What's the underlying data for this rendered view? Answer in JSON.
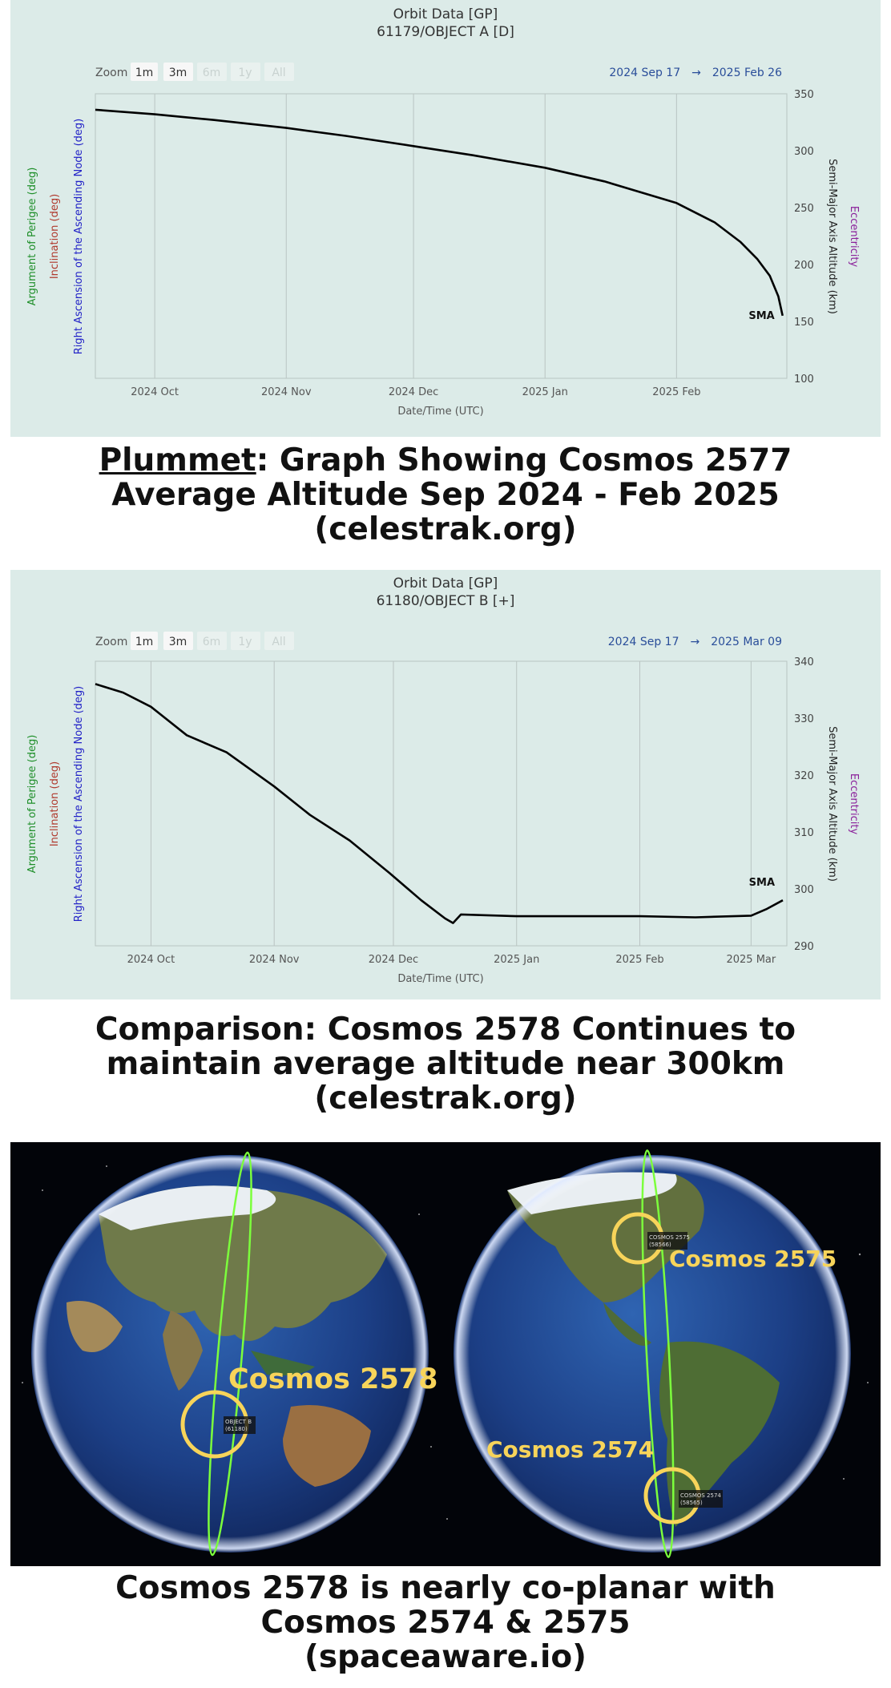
{
  "charts": {
    "a": {
      "title": "Orbit Data [GP]",
      "subtitle": "61179/OBJECT A [D]",
      "zoom": {
        "label": "Zoom",
        "buttons": [
          "1m",
          "3m",
          "6m",
          "1y",
          "All"
        ]
      },
      "range": {
        "start": "2024 Sep 17",
        "arrow": "→",
        "end": "2025 Feb 26"
      },
      "left_axis_labels": [
        "Argument of Perigee (deg)",
        "Inclination (deg)",
        "Right Ascension of the Ascending Node (deg)"
      ],
      "right_axis_labels": [
        "Semi-Major Axis Altitude (km)",
        "Eccentricity"
      ],
      "xlabel": "Date/Time (UTC)",
      "series_label": "SMA"
    },
    "b": {
      "title": "Orbit Data [GP]",
      "subtitle": "61180/OBJECT B [+]",
      "zoom": {
        "label": "Zoom",
        "buttons": [
          "1m",
          "3m",
          "6m",
          "1y",
          "All"
        ]
      },
      "range": {
        "start": "2024 Sep 17",
        "arrow": "→",
        "end": "2025 Mar 09"
      },
      "left_axis_labels": [
        "Argument of Perigee (deg)",
        "Inclination (deg)",
        "Right Ascension of the Ascending Node (deg)"
      ],
      "right_axis_labels": [
        "Semi-Major Axis Altitude (km)",
        "Eccentricity"
      ],
      "xlabel": "Date/Time (UTC)",
      "series_label": "SMA"
    }
  },
  "chart_data": [
    {
      "type": "line",
      "xlabel": "Date/Time (UTC)",
      "ylabel": "Semi-Major Axis Altitude (km)",
      "xlim": [
        "2024-09-17",
        "2025-02-26"
      ],
      "ylim": [
        100,
        350
      ],
      "yticks": [
        100,
        150,
        200,
        250,
        300,
        350
      ],
      "xticks": [
        {
          "date": "2024-10-01",
          "label": "2024 Oct"
        },
        {
          "date": "2024-11-01",
          "label": "2024 Nov"
        },
        {
          "date": "2024-12-01",
          "label": "2024 Dec"
        },
        {
          "date": "2025-01-01",
          "label": "2025 Jan"
        },
        {
          "date": "2025-02-01",
          "label": "2025 Feb"
        }
      ],
      "grid": true,
      "series": [
        {
          "name": "SMA",
          "color": "#000000",
          "x": [
            "2024-09-17",
            "2024-10-01",
            "2024-10-15",
            "2024-11-01",
            "2024-11-15",
            "2024-12-01",
            "2024-12-15",
            "2025-01-01",
            "2025-01-15",
            "2025-02-01",
            "2025-02-10",
            "2025-02-16",
            "2025-02-20",
            "2025-02-23",
            "2025-02-25",
            "2025-02-26"
          ],
          "y": [
            336,
            332,
            327,
            320,
            313,
            304,
            296,
            285,
            273,
            254,
            237,
            220,
            205,
            190,
            172,
            155
          ]
        }
      ]
    },
    {
      "type": "line",
      "xlabel": "Date/Time (UTC)",
      "ylabel": "Semi-Major Axis Altitude (km)",
      "xlim": [
        "2024-09-17",
        "2025-03-09"
      ],
      "ylim": [
        290,
        340
      ],
      "yticks": [
        290,
        300,
        310,
        320,
        330,
        340
      ],
      "xticks": [
        {
          "date": "2024-10-01",
          "label": "2024 Oct"
        },
        {
          "date": "2024-11-01",
          "label": "2024 Nov"
        },
        {
          "date": "2024-12-01",
          "label": "2024 Dec"
        },
        {
          "date": "2025-01-01",
          "label": "2025 Jan"
        },
        {
          "date": "2025-02-01",
          "label": "2025 Feb"
        },
        {
          "date": "2025-03-01",
          "label": "2025 Mar"
        }
      ],
      "grid": true,
      "series": [
        {
          "name": "SMA",
          "color": "#000000",
          "x": [
            "2024-09-17",
            "2024-09-24",
            "2024-10-01",
            "2024-10-10",
            "2024-10-20",
            "2024-11-01",
            "2024-11-10",
            "2024-11-20",
            "2024-11-30",
            "2024-12-08",
            "2024-12-14",
            "2024-12-16",
            "2024-12-18",
            "2025-01-01",
            "2025-01-15",
            "2025-02-01",
            "2025-02-15",
            "2025-03-01",
            "2025-03-05",
            "2025-03-09"
          ],
          "y": [
            336,
            334.5,
            332,
            327,
            324,
            318,
            313,
            308.5,
            302.8,
            298,
            294.8,
            294,
            295.5,
            295.2,
            295.2,
            295.2,
            295,
            295.3,
            296.5,
            298
          ]
        }
      ]
    }
  ],
  "captions": {
    "first": {
      "emphasis": "Plummet",
      "line1_rest": ":  Graph Showing Cosmos 2577",
      "line2": "Average Altitude Sep 2024 - Feb 2025",
      "line3": "(celestrak.org)"
    },
    "second": {
      "line1": "Comparison:  Cosmos 2578 Continues to",
      "line2": "maintain average altitude near 300km",
      "line3": "(celestrak.org)"
    },
    "third": {
      "line1": "Cosmos 2578 is nearly co-planar with",
      "line2": "Cosmos 2574 & 2575",
      "line3": "(spaceaware.io)"
    }
  },
  "globes": {
    "left": {
      "label": "Cosmos 2578",
      "tag_lines": [
        "OBJECT B",
        "(61180)"
      ]
    },
    "right": {
      "top": {
        "label": "Cosmos 2575",
        "tag_lines": [
          "COSMOS 2575",
          "(58566)"
        ]
      },
      "bottom": {
        "label": "Cosmos 2574",
        "tag_lines": [
          "COSMOS 2574",
          "(58565)"
        ]
      }
    }
  },
  "colors": {
    "panel_bg": "#dcebe8",
    "label_green": "#1f8f2a",
    "label_red": "#b03a2e",
    "label_blue": "#2323c7",
    "label_purple": "#8a1f9a",
    "range_blue": "#2a4e9a",
    "circle_yellow": "#f7d45a",
    "orbit_green": "#7cff3c"
  }
}
